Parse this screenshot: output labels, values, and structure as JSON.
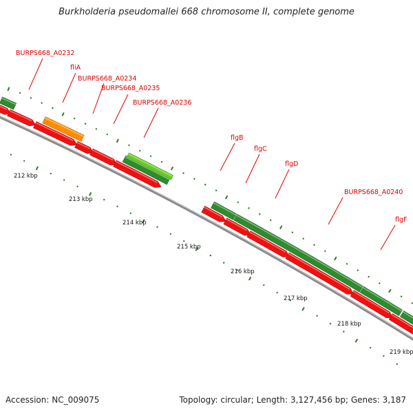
{
  "map": {
    "title": "Burkholderia pseudomallei 668 chromosome II, complete genome",
    "accession": "Accession: NC_009075",
    "topology": "Topology: circular; Length: 3,127,456 bp; Genes: 3,187"
  },
  "colors": {
    "forward": "#2e8b2e",
    "reverse": "#ee1111",
    "fliA": "#ff8c00",
    "highlight": "#66cc22",
    "backbone": "#888888",
    "label": "#dd0000",
    "tick": "#2a7a2a"
  },
  "scale_labels": [
    "212 kbp",
    "213 kbp",
    "214 kbp",
    "215 kbp",
    "216 kbp",
    "217 kbp",
    "218 kbp",
    "219 kbp"
  ],
  "gene_labels": [
    "BURPS668_A0232",
    "fliA",
    "BURPS668_A0234",
    "BURPS668_A0235",
    "BURPS668_A0236",
    "flgB",
    "flgC",
    "flgD",
    "BURPS668_A0240",
    "flgF"
  ]
}
